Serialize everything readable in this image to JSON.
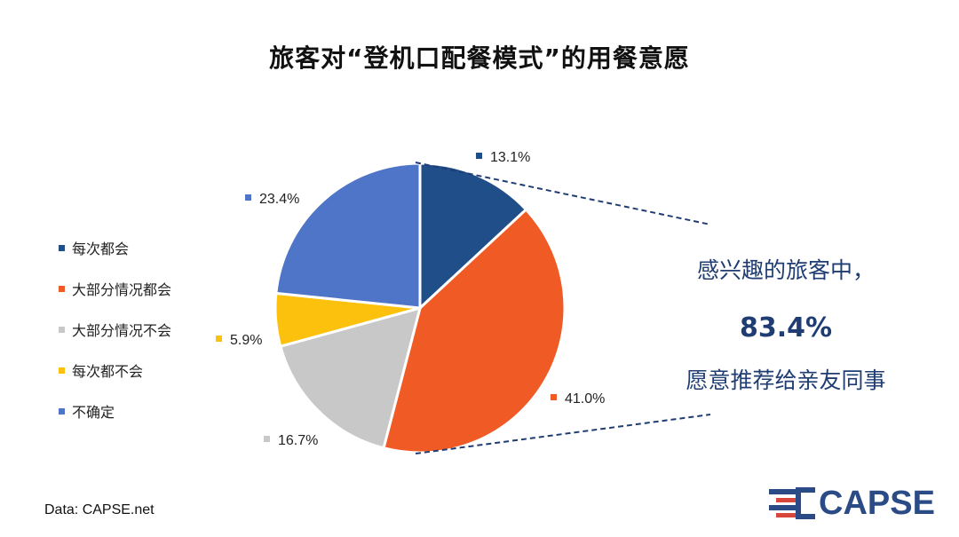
{
  "title": "旅客对“登机口配餐模式”的用餐意愿",
  "chart_data": {
    "type": "pie",
    "slices": [
      {
        "label": "每次都会",
        "value": 13.1,
        "value_label": "13.1%",
        "color": "#1f4e89"
      },
      {
        "label": "大部分情况都会",
        "value": 41.0,
        "value_label": "41.0%",
        "color": "#f05a24"
      },
      {
        "label": "大部分情况不会",
        "value": 16.7,
        "value_label": "16.7%",
        "color": "#c8c8c8"
      },
      {
        "label": "每次都不会",
        "value": 5.9,
        "value_label": "5.9%",
        "color": "#fcc10d"
      },
      {
        "label": "不确定",
        "value": 23.4,
        "value_label": "23.4%",
        "color": "#4f75c8"
      }
    ],
    "legend_position": "left",
    "start_angle_deg": 0,
    "direction": "clockwise"
  },
  "callout": {
    "line1": "感兴趣的旅客中，",
    "percentage": "83.4%",
    "line2": "愿意推荐给亲友同事"
  },
  "source": "Data: CAPSE.net",
  "logo": {
    "text": "CAPSE",
    "colors": [
      "#2a4b86",
      "#d8453a"
    ]
  }
}
